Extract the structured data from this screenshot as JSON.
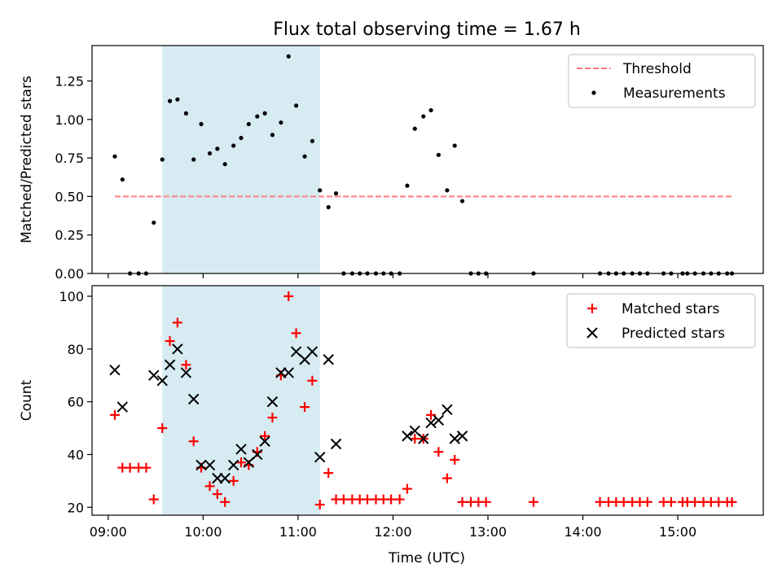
{
  "chart_data": [
    {
      "type": "scatter",
      "title": "Flux total observing time = 1.67 h",
      "xlabel": "",
      "ylabel": "Matched/Predicted stars",
      "xlim": [
        8.83,
        15.9
      ],
      "ylim": [
        0,
        1.48
      ],
      "yticks": [
        0,
        0.25,
        0.5,
        0.75,
        1.0,
        1.25
      ],
      "ytick_labels": [
        "0.00",
        "0.25",
        "0.50",
        "0.75",
        "1.00",
        "1.25"
      ],
      "shaded_span": {
        "x_start": 9.57,
        "x_end": 11.23,
        "color": "#add8e6"
      },
      "legend": {
        "position": "upper right",
        "entries": [
          "Threshold",
          "Measurements"
        ]
      },
      "series": [
        {
          "name": "Threshold",
          "kind": "line",
          "style": "dashed",
          "color": "#ff7f7f",
          "x": [
            9.07,
            15.57
          ],
          "y": [
            0.5,
            0.5
          ]
        },
        {
          "name": "Measurements",
          "kind": "scatter",
          "marker": "dot",
          "color": "#000000",
          "x": [
            9.07,
            9.15,
            9.23,
            9.32,
            9.4,
            9.48,
            9.57,
            9.65,
            9.73,
            9.82,
            9.9,
            9.98,
            10.07,
            10.15,
            10.23,
            10.32,
            10.4,
            10.48,
            10.57,
            10.65,
            10.73,
            10.82,
            10.9,
            10.98,
            11.07,
            11.15,
            11.23,
            11.32,
            11.4,
            11.48,
            11.57,
            11.65,
            11.73,
            11.82,
            11.9,
            11.98,
            12.07,
            12.15,
            12.23,
            12.32,
            12.4,
            12.48,
            12.57,
            12.65,
            12.73,
            12.82,
            12.9,
            12.98,
            13.48,
            14.18,
            14.27,
            14.35,
            14.43,
            14.52,
            14.6,
            14.68,
            14.85,
            14.93,
            15.05,
            15.1,
            15.18,
            15.27,
            15.35,
            15.43,
            15.52,
            15.57
          ],
          "y": [
            0.76,
            0.61,
            0,
            0,
            0,
            0.33,
            0.74,
            1.12,
            1.13,
            1.04,
            0.74,
            0.97,
            0.78,
            0.81,
            0.71,
            0.83,
            0.88,
            0.97,
            1.02,
            1.04,
            0.9,
            0.98,
            1.41,
            1.09,
            0.76,
            0.86,
            0.54,
            0.43,
            0.52,
            0,
            0,
            0,
            0,
            0,
            0,
            0,
            0,
            0.57,
            0.94,
            1.02,
            1.06,
            0.77,
            0.54,
            0.83,
            0.47,
            0,
            0,
            0,
            0,
            0,
            0,
            0,
            0,
            0,
            0,
            0,
            0,
            0,
            0,
            0,
            0,
            0,
            0,
            0,
            0,
            0
          ]
        }
      ]
    },
    {
      "type": "scatter",
      "title": "",
      "xlabel": "Time (UTC)",
      "ylabel": "Count",
      "xlim": [
        8.83,
        15.9
      ],
      "ylim": [
        17,
        104
      ],
      "yticks": [
        20,
        40,
        60,
        80,
        100
      ],
      "ytick_labels": [
        "20",
        "40",
        "60",
        "80",
        "100"
      ],
      "xticks": [
        9,
        10,
        11,
        12,
        13,
        14,
        15
      ],
      "xtick_labels": [
        "09:00",
        "10:00",
        "11:00",
        "12:00",
        "13:00",
        "14:00",
        "15:00"
      ],
      "shaded_span": {
        "x_start": 9.57,
        "x_end": 11.23,
        "color": "#add8e6"
      },
      "legend": {
        "position": "upper right",
        "entries": [
          "Matched stars",
          "Predicted stars"
        ]
      },
      "series": [
        {
          "name": "Matched stars",
          "kind": "scatter",
          "marker": "plus",
          "color": "#ff0000",
          "x": [
            9.07,
            9.15,
            9.23,
            9.32,
            9.4,
            9.48,
            9.57,
            9.65,
            9.73,
            9.82,
            9.9,
            9.98,
            10.07,
            10.15,
            10.23,
            10.32,
            10.4,
            10.48,
            10.57,
            10.65,
            10.73,
            10.82,
            10.9,
            10.98,
            11.07,
            11.15,
            11.23,
            11.32,
            11.4,
            11.48,
            11.57,
            11.65,
            11.73,
            11.82,
            11.9,
            11.98,
            12.07,
            12.15,
            12.23,
            12.32,
            12.4,
            12.48,
            12.57,
            12.65,
            12.73,
            12.82,
            12.9,
            12.98,
            13.48,
            14.18,
            14.27,
            14.35,
            14.43,
            14.52,
            14.6,
            14.68,
            14.85,
            14.93,
            15.05,
            15.1,
            15.18,
            15.27,
            15.35,
            15.43,
            15.52,
            15.57
          ],
          "y": [
            55,
            35,
            35,
            35,
            35,
            23,
            50,
            83,
            90,
            74,
            45,
            35,
            28,
            25,
            22,
            30,
            37,
            36,
            41,
            47,
            54,
            70,
            100,
            86,
            58,
            68,
            21,
            33,
            23,
            23,
            23,
            23,
            23,
            23,
            23,
            23,
            23,
            27,
            46,
            46,
            55,
            41,
            31,
            38,
            22,
            22,
            22,
            22,
            22,
            22,
            22,
            22,
            22,
            22,
            22,
            22,
            22,
            22,
            22,
            22,
            22,
            22,
            22,
            22,
            22,
            22
          ]
        },
        {
          "name": "Predicted stars",
          "kind": "scatter",
          "marker": "x",
          "color": "#000000",
          "x": [
            9.07,
            9.15,
            9.48,
            9.57,
            9.65,
            9.73,
            9.82,
            9.9,
            9.98,
            10.07,
            10.15,
            10.23,
            10.32,
            10.4,
            10.48,
            10.57,
            10.65,
            10.73,
            10.82,
            10.9,
            10.98,
            11.07,
            11.15,
            11.23,
            11.32,
            11.4,
            12.15,
            12.23,
            12.32,
            12.4,
            12.48,
            12.57,
            12.65,
            12.73
          ],
          "y": [
            72,
            58,
            70,
            68,
            74,
            80,
            71,
            61,
            36,
            36,
            31,
            31,
            36,
            42,
            37,
            40,
            45,
            60,
            71,
            71,
            79,
            76,
            79,
            39,
            76,
            44,
            47,
            49,
            46,
            52,
            53,
            57,
            46,
            47
          ]
        }
      ]
    }
  ]
}
